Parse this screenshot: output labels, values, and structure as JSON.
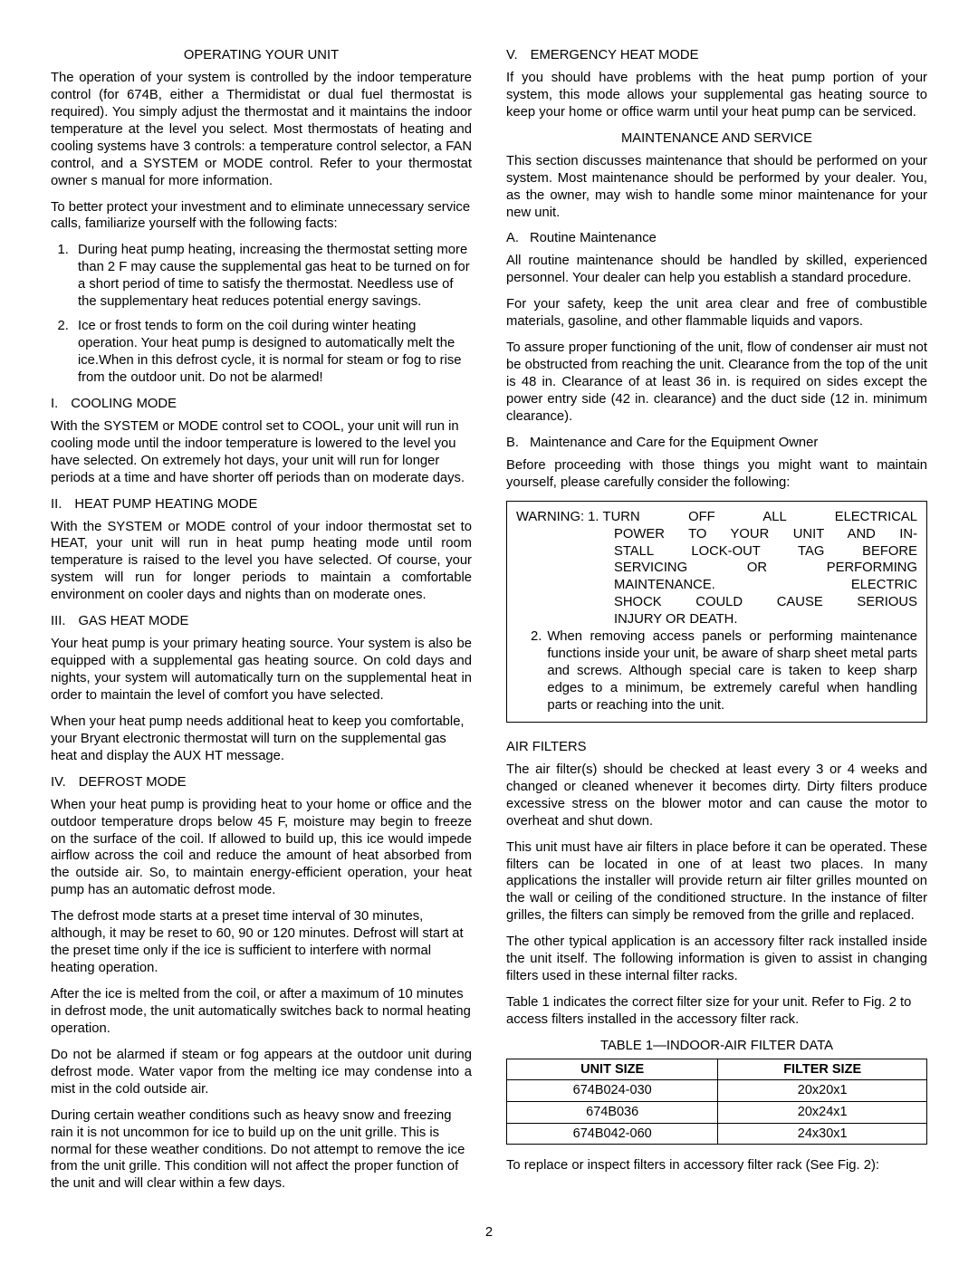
{
  "left": {
    "h1": "OPERATING YOUR UNIT",
    "p1": "The operation of your system is controlled by the indoor temperature control (for 674B, either a Thermidistat or dual fuel thermostat is required). You simply adjust the thermostat and it maintains the indoor temperature at the level you select. Most thermostats of heating and cooling systems have 3 controls: a temperature control selector, a FAN control, and a SYSTEM or MODE control. Refer to your thermostat owner s manual for more information.",
    "p2": "To better protect your investment and to eliminate unnecessary service calls, familiarize yourself with the following facts:",
    "li1": "During heat pump heating, increasing the thermostat setting more than 2 F may cause the supplemental gas heat to be turned on for a short period of time to satisfy the thermostat. Needless use of the supplementary heat reduces potential energy savings.",
    "li2": "Ice or frost tends to form on the coil during winter heating operation. Your heat pump is designed to automatically melt the ice.When in this defrost cycle, it is normal for steam or fog to rise from the outdoor unit. Do not be alarmed!",
    "sec1_r": "I.",
    "sec1_t": "COOLING MODE",
    "sec1_p": "With the SYSTEM or MODE control set to COOL, your unit will run in cooling mode until the indoor temperature is lowered to the level you have selected. On extremely hot days, your unit will run for longer periods at a time and have shorter  off  periods than on moderate days.",
    "sec2_r": "II.",
    "sec2_t": "HEAT PUMP HEATING MODE",
    "sec2_p": "With the SYSTEM or MODE control of your indoor thermostat set to HEAT, your unit will run in heat pump heating mode until room temperature is raised to the level you have selected. Of course, your system will run for longer periods to maintain a comfortable environment on cooler days and nights than on moderate ones.",
    "sec3_r": "III.",
    "sec3_t": "GAS HEAT MODE",
    "sec3_p1": "Your heat pump is your primary heating source. Your system is also be equipped with a supplemental gas heating source. On cold days and nights, your system will automatically turn on the supplemental heat in order to maintain the level of comfort you have selected.",
    "sec3_p2": "When your heat pump needs additional heat to keep you comfortable, your Bryant electronic thermostat will turn on the supplemental gas heat and display the  AUX HT  message.",
    "sec4_r": "IV.",
    "sec4_t": "DEFROST MODE",
    "sec4_p1": "When your heat pump is providing heat to your home or office and the outdoor temperature drops below 45 F, moisture may begin to freeze on the surface of the coil. If allowed to build up, this ice would impede airflow across the coil and reduce the amount of heat absorbed from the outside air. So, to maintain energy-efficient operation, your heat pump has an automatic defrost mode.",
    "sec4_p2": "The defrost mode starts at a preset time interval of 30 minutes, although, it may be reset to 60, 90 or 120 minutes. Defrost will start at the preset time only if the ice is sufficient to interfere with normal heating operation.",
    "sec4_p3": "After the ice is melted from the coil, or after a maximum of 10 minutes in defrost mode, the unit automatically switches back to normal heating operation.",
    "sec4_p4": "Do not be alarmed if steam or fog appears at the outdoor unit during defrost mode. Water vapor from the melting ice may condense into a mist in the cold outside air.",
    "sec4_p5": "During certain weather conditions such as heavy snow and freezing rain it is not uncommon for ice to build up on the unit grille. This is normal for these weather conditions. Do not attempt to remove the ice from the unit grille. This condition will not affect the proper function of the unit and will clear within a few days."
  },
  "right": {
    "sec5_r": "V.",
    "sec5_t": "EMERGENCY HEAT MODE",
    "sec5_p": "If you should have problems with the heat pump portion of your system, this mode allows your supplemental gas heating source to keep your home or office warm until your heat pump can be serviced.",
    "h2": "MAINTENANCE AND SERVICE",
    "h2_p": "This section discusses maintenance that should be performed on your system. Most maintenance should be performed by your dealer. You, as the owner, may wish to handle some minor maintenance for your new unit.",
    "a_r": "A.",
    "a_t": "Routine Maintenance",
    "a_p1": "All routine maintenance should be handled by skilled, experienced personnel. Your dealer can help you establish a standard procedure.",
    "a_p2": "For your safety, keep the unit area clear and free of combustible materials, gasoline, and other flammable liquids and vapors.",
    "a_p3": "To assure proper functioning of the unit, flow of condenser air must not be obstructed from reaching the unit. Clearance from the top of the unit is 48 in. Clearance of at least 36 in. is required on sides except the power entry side (42 in. clearance) and the duct side (12 in. minimum clearance).",
    "b_r": "B.",
    "b_t": "Maintenance and Care for the Equipment Owner",
    "b_p": "Before proceeding with those things you might want to maintain yourself, please carefully consider the following:",
    "warn_lead": "WARNING: 1.",
    "warn_l1": "TURN OFF ALL ELECTRICAL",
    "warn_l2": "POWER TO YOUR UNIT AND IN-",
    "warn_l3": "STALL LOCK-OUT TAG BEFORE",
    "warn_l4": "SERVICING OR PERFORMING",
    "warn_l5": "MAINTENANCE.          ELECTRIC",
    "warn_l6": "SHOCK COULD CAUSE SERIOUS",
    "warn_l7": "INJURY OR DEATH.",
    "warn2_n": "2.",
    "warn2_t": "When removing access panels or performing maintenance functions inside your unit, be aware of sharp sheet metal parts and screws. Although special care is taken to keep sharp edges to a minimum, be extremely careful when handling parts or reaching into the unit.",
    "af_h": "AIR FILTERS",
    "af_p1": "The air filter(s) should be checked at least every 3 or 4 weeks and changed or cleaned whenever it becomes dirty. Dirty filters produce excessive stress on the blower motor and can cause the motor to overheat and shut down.",
    "af_p2": "This unit must have air filters in place before it can be operated. These filters can be located in one of at least two places. In many applications the installer will provide return air filter grilles mounted on the wall or ceiling of the conditioned structure. In the instance of filter grilles, the filters can simply be removed from the grille and replaced.",
    "af_p3": "The other typical application is an accessory filter rack installed inside the unit itself. The following information is given to assist in changing filters used in these internal filter racks.",
    "af_p4": "Table 1 indicates the correct filter size for your unit. Refer to Fig. 2 to access filters installed in the accessory filter rack.",
    "table_title": "TABLE 1—INDOOR-AIR FILTER DATA",
    "th1": "UNIT SIZE",
    "th2": "FILTER SIZE",
    "r1c1": "674B024-030",
    "r1c2": "20x20x1",
    "r2c1": "674B036",
    "r2c2": "20x24x1",
    "r3c1": "674B042-060",
    "r3c2": "24x30x1",
    "last_p": "To replace or inspect filters in accessory filter rack (See Fig. 2):"
  },
  "page_num": "2"
}
